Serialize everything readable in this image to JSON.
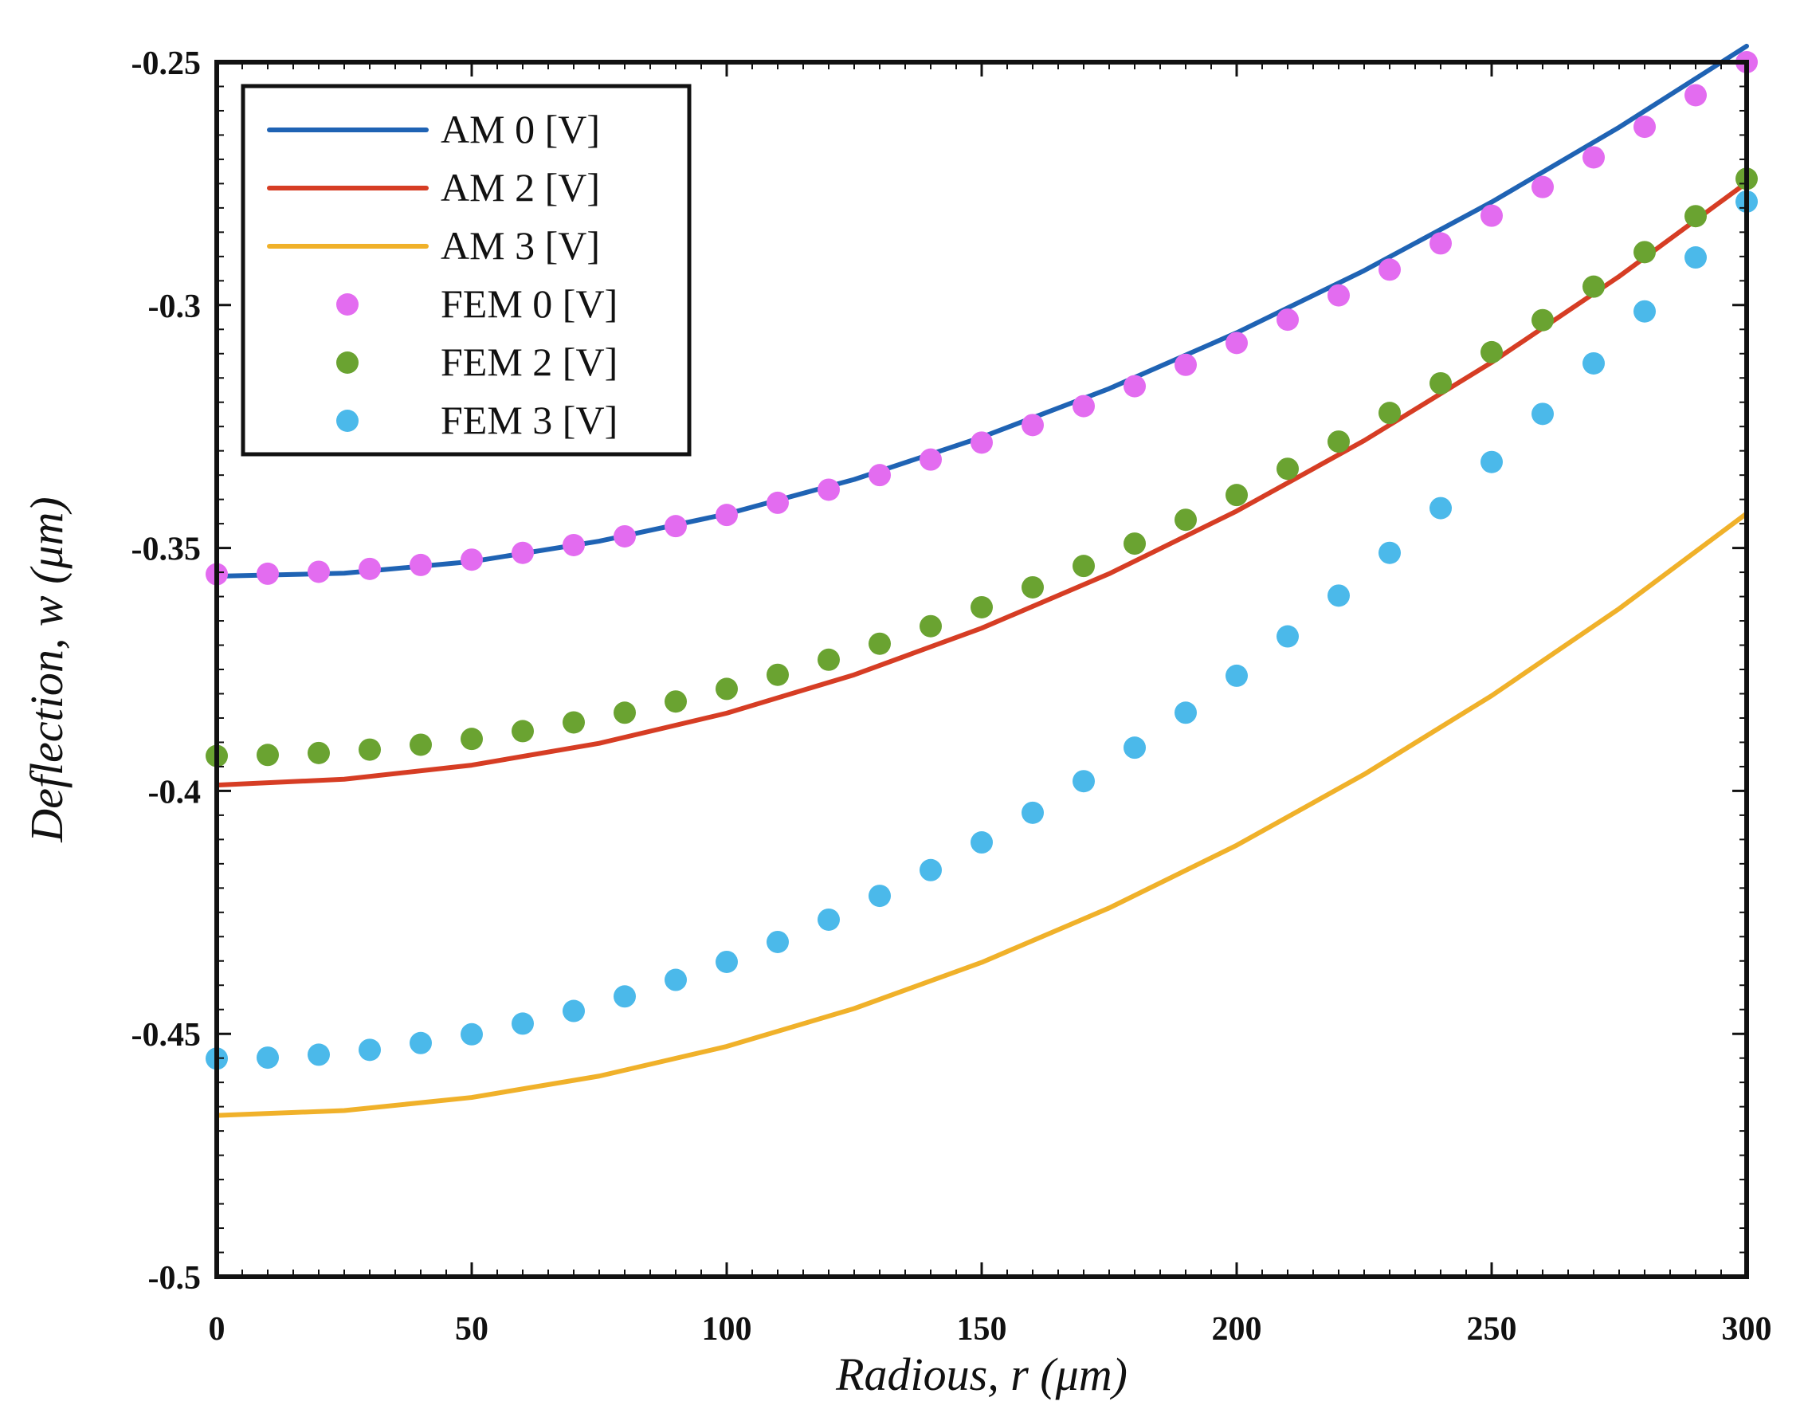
{
  "chart_data": {
    "type": "line",
    "title": "",
    "xlabel": "Radious, r (μm)",
    "ylabel": "Deflection, w (μm)",
    "xlim": [
      0,
      300
    ],
    "ylim": [
      -0.5,
      -0.25
    ],
    "x_ticks": [
      0,
      50,
      100,
      150,
      200,
      250,
      300
    ],
    "y_ticks": [
      -0.25,
      -0.3,
      -0.35,
      -0.4,
      -0.45,
      -0.5
    ],
    "x_tick_labels": [
      "0",
      "50",
      "100",
      "150",
      "200",
      "250",
      "300"
    ],
    "y_tick_labels": [
      "-0.25",
      "-0.3",
      "-0.35",
      "-0.4",
      "-0.45",
      "-0.5"
    ],
    "grid": false,
    "legend_position": "top-left",
    "series": [
      {
        "name": "AM 0 [V]",
        "kind": "line",
        "color": "#1f63b4",
        "x": [
          0,
          25,
          50,
          75,
          100,
          125,
          150,
          175,
          200,
          225,
          250,
          275,
          300
        ],
        "y": [
          -0.3558,
          -0.3552,
          -0.3528,
          -0.3486,
          -0.343,
          -0.3359,
          -0.3272,
          -0.3172,
          -0.3057,
          -0.2929,
          -0.2788,
          -0.2634,
          -0.2467
        ]
      },
      {
        "name": "AM 2 [V]",
        "kind": "line",
        "color": "#d63d24",
        "x": [
          0,
          25,
          50,
          75,
          100,
          125,
          150,
          175,
          200,
          225,
          250,
          275,
          300
        ],
        "y": [
          -0.3988,
          -0.3976,
          -0.3947,
          -0.3902,
          -0.384,
          -0.3761,
          -0.3665,
          -0.3553,
          -0.3424,
          -0.3279,
          -0.3118,
          -0.2941,
          -0.2748
        ]
      },
      {
        "name": "AM 3 [V]",
        "kind": "line",
        "color": "#f0b12a",
        "x": [
          0,
          25,
          50,
          75,
          100,
          125,
          150,
          175,
          200,
          225,
          250,
          275,
          300
        ],
        "y": [
          -0.4668,
          -0.4658,
          -0.4631,
          -0.4587,
          -0.4526,
          -0.4448,
          -0.4353,
          -0.4241,
          -0.4112,
          -0.3966,
          -0.3804,
          -0.3625,
          -0.3429
        ]
      },
      {
        "name": "FEM 0 [V]",
        "kind": "scatter",
        "color": "#e36cf0",
        "x": [
          0,
          10,
          20,
          30,
          40,
          50,
          60,
          70,
          80,
          90,
          100,
          110,
          120,
          130,
          140,
          150,
          160,
          170,
          180,
          190,
          200,
          210,
          220,
          230,
          240,
          250,
          260,
          270,
          280,
          290,
          300
        ],
        "y": [
          -0.3554,
          -0.3553,
          -0.3549,
          -0.3543,
          -0.3535,
          -0.3524,
          -0.351,
          -0.3494,
          -0.3476,
          -0.3455,
          -0.3432,
          -0.3407,
          -0.338,
          -0.335,
          -0.3318,
          -0.3283,
          -0.3247,
          -0.3208,
          -0.3167,
          -0.3123,
          -0.3078,
          -0.303,
          -0.298,
          -0.2927,
          -0.2873,
          -0.2816,
          -0.2757,
          -0.2696,
          -0.2633,
          -0.2568,
          -0.25
        ]
      },
      {
        "name": "FEM 2 [V]",
        "kind": "scatter",
        "color": "#6aa331",
        "x": [
          0,
          10,
          20,
          30,
          40,
          50,
          60,
          70,
          80,
          90,
          100,
          110,
          120,
          130,
          140,
          150,
          160,
          170,
          180,
          190,
          200,
          210,
          220,
          230,
          240,
          250,
          260,
          270,
          280,
          290,
          300
        ],
        "y": [
          -0.3928,
          -0.3926,
          -0.3922,
          -0.3915,
          -0.3905,
          -0.3893,
          -0.3877,
          -0.3859,
          -0.3839,
          -0.3816,
          -0.379,
          -0.3761,
          -0.373,
          -0.3697,
          -0.3661,
          -0.3622,
          -0.3581,
          -0.3537,
          -0.3491,
          -0.3442,
          -0.3391,
          -0.3337,
          -0.3281,
          -0.3222,
          -0.3161,
          -0.3097,
          -0.3031,
          -0.2962,
          -0.2891,
          -0.2817,
          -0.274
        ]
      },
      {
        "name": "FEM 3 [V]",
        "kind": "scatter",
        "color": "#4bb9ea",
        "x": [
          0,
          10,
          20,
          30,
          40,
          50,
          60,
          70,
          80,
          90,
          100,
          110,
          120,
          130,
          140,
          150,
          160,
          170,
          180,
          190,
          200,
          210,
          220,
          230,
          240,
          250,
          260,
          270,
          280,
          290,
          300
        ],
        "y": [
          -0.4551,
          -0.4549,
          -0.4543,
          -0.4533,
          -0.4519,
          -0.4501,
          -0.4479,
          -0.4453,
          -0.4423,
          -0.4389,
          -0.4352,
          -0.4311,
          -0.4265,
          -0.4216,
          -0.4163,
          -0.4106,
          -0.4045,
          -0.398,
          -0.3911,
          -0.3839,
          -0.3763,
          -0.3682,
          -0.3598,
          -0.351,
          -0.3418,
          -0.3323,
          -0.3224,
          -0.312,
          -0.3013,
          -0.2902,
          -0.2787
        ]
      }
    ]
  }
}
